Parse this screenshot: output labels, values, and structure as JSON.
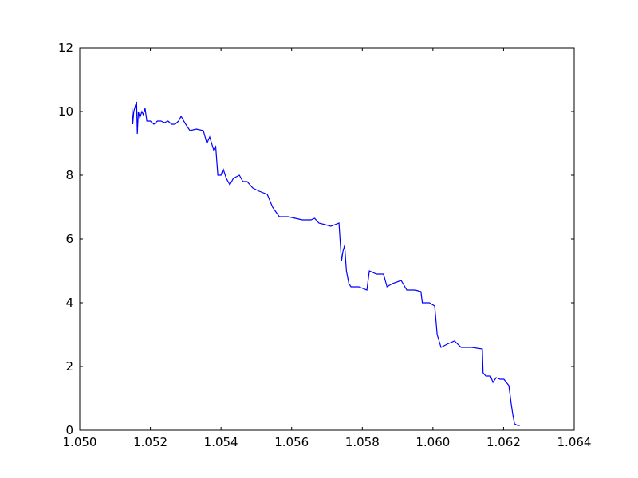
{
  "chart_data": {
    "type": "line",
    "x": [
      1.05148,
      1.0515,
      1.05153,
      1.05158,
      1.05161,
      1.05163,
      1.05166,
      1.0517,
      1.05176,
      1.0518,
      1.05185,
      1.0519,
      1.052,
      1.0521,
      1.0522,
      1.0523,
      1.0524,
      1.0525,
      1.0526,
      1.0527,
      1.0528,
      1.05287,
      1.053,
      1.05312,
      1.0533,
      1.0535,
      1.0536,
      1.05368,
      1.05379,
      1.05385,
      1.05391,
      1.054,
      1.05406,
      1.05415,
      1.05425,
      1.05435,
      1.05452,
      1.05462,
      1.05474,
      1.0549,
      1.05508,
      1.05531,
      1.05546,
      1.05565,
      1.0559,
      1.0561,
      1.0563,
      1.05655,
      1.05665,
      1.05677,
      1.05695,
      1.05711,
      1.05734,
      1.05741,
      1.05745,
      1.0575,
      1.05755,
      1.05762,
      1.05768,
      1.0579,
      1.05813,
      1.0582,
      1.0584,
      1.0586,
      1.0587,
      1.05885,
      1.0591,
      1.05926,
      1.0595,
      1.05966,
      1.0597,
      1.0599,
      1.06005,
      1.06012,
      1.06023,
      1.0604,
      1.06061,
      1.0608,
      1.0611,
      1.0614,
      1.06142,
      1.0615,
      1.06163,
      1.0617,
      1.06179,
      1.0619,
      1.06201,
      1.06208,
      1.06215,
      1.06222,
      1.06226,
      1.06231,
      1.0624,
      1.06246
    ],
    "series": [
      {
        "color": "#0000ff",
        "values": [
          10.1,
          9.6,
          10.0,
          10.2,
          10.3,
          9.3,
          10.0,
          9.8,
          10.0,
          9.9,
          10.1,
          9.7,
          9.7,
          9.6,
          9.7,
          9.7,
          9.65,
          9.7,
          9.6,
          9.6,
          9.7,
          9.85,
          9.6,
          9.4,
          9.45,
          9.4,
          9.0,
          9.2,
          8.8,
          8.9,
          8.0,
          8.0,
          8.2,
          7.9,
          7.7,
          7.9,
          8.0,
          7.8,
          7.8,
          7.6,
          7.5,
          7.4,
          7.0,
          6.7,
          6.7,
          6.65,
          6.6,
          6.6,
          6.65,
          6.5,
          6.45,
          6.4,
          6.5,
          5.3,
          5.6,
          5.8,
          5.0,
          4.6,
          4.5,
          4.5,
          4.4,
          5.0,
          4.9,
          4.9,
          4.5,
          4.6,
          4.7,
          4.4,
          4.4,
          4.35,
          4.0,
          4.0,
          3.9,
          3.0,
          2.6,
          2.7,
          2.8,
          2.6,
          2.6,
          2.55,
          1.8,
          1.7,
          1.7,
          1.5,
          1.65,
          1.6,
          1.6,
          1.5,
          1.4,
          0.8,
          0.5,
          0.2,
          0.15,
          0.15
        ]
      }
    ],
    "xlim": [
      1.05,
      1.064
    ],
    "ylim": [
      0,
      12
    ],
    "xticks": [
      {
        "value": 1.05,
        "label": "1.050"
      },
      {
        "value": 1.052,
        "label": "1.052"
      },
      {
        "value": 1.054,
        "label": "1.054"
      },
      {
        "value": 1.056,
        "label": "1.056"
      },
      {
        "value": 1.058,
        "label": "1.058"
      },
      {
        "value": 1.06,
        "label": "1.060"
      },
      {
        "value": 1.062,
        "label": "1.062"
      },
      {
        "value": 1.064,
        "label": "1.064"
      }
    ],
    "yticks": [
      0,
      2,
      4,
      6,
      8,
      10,
      12
    ],
    "grid": false
  }
}
